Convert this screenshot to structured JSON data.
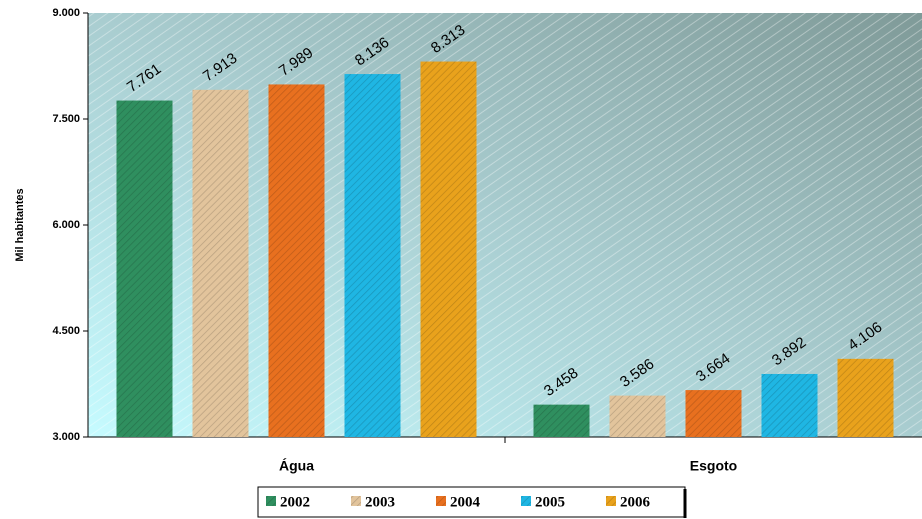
{
  "chart_data": {
    "type": "bar",
    "y_label": "Mil habitantes",
    "categories": [
      "Água",
      "Esgoto"
    ],
    "series": [
      {
        "name": "2002",
        "color": "#2f8f5f",
        "values": [
          7761,
          3458
        ],
        "value_labels": [
          "7.761",
          "3.458"
        ]
      },
      {
        "name": "2003",
        "color": "#e2c49c",
        "values": [
          7913,
          3586
        ],
        "value_labels": [
          "7.913",
          "3.586"
        ]
      },
      {
        "name": "2004",
        "color": "#e8701f",
        "values": [
          7989,
          3664
        ],
        "value_labels": [
          "7.989",
          "3.664"
        ]
      },
      {
        "name": "2005",
        "color": "#1fb6e3",
        "values": [
          8136,
          3892
        ],
        "value_labels": [
          "8.136",
          "3.892"
        ]
      },
      {
        "name": "2006",
        "color": "#e9a21c",
        "values": [
          8313,
          4106
        ],
        "value_labels": [
          "8.313",
          "4.106"
        ]
      }
    ],
    "ylim": [
      3000,
      9000
    ],
    "yticks": [
      {
        "value": 3000,
        "label": "3.000"
      },
      {
        "value": 4500,
        "label": "4.500"
      },
      {
        "value": 6000,
        "label": "6.000"
      },
      {
        "value": 7500,
        "label": "7.500"
      },
      {
        "value": 9000,
        "label": "9.000"
      }
    ]
  }
}
